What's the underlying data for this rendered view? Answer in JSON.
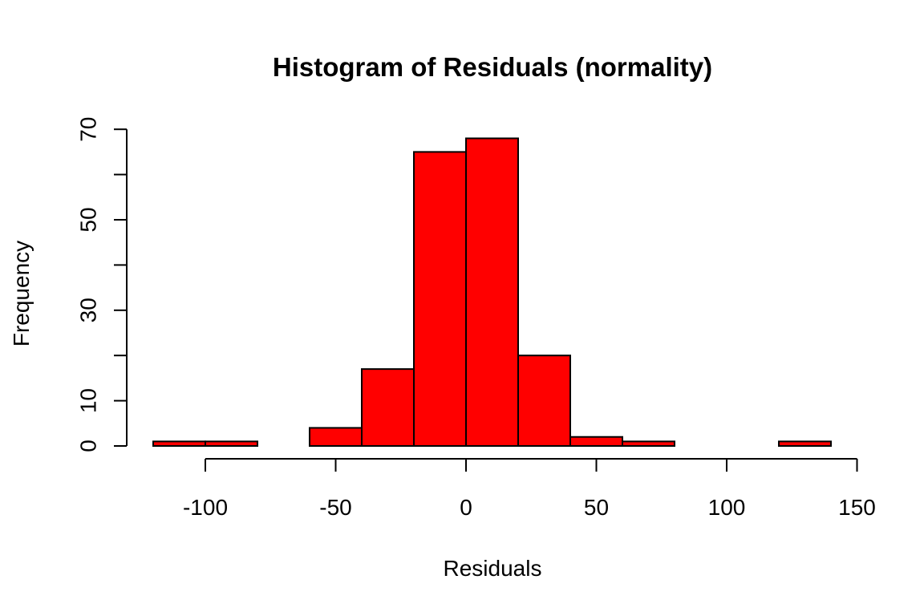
{
  "chart_data": {
    "type": "bar",
    "title": "Histogram of Residuals (normality)",
    "xlabel": "Residuals",
    "ylabel": "Frequency",
    "bar_color": "#FF0000",
    "bins": [
      {
        "start": -120,
        "end": -100,
        "count": 1
      },
      {
        "start": -100,
        "end": -80,
        "count": 1
      },
      {
        "start": -80,
        "end": -60,
        "count": 0
      },
      {
        "start": -60,
        "end": -40,
        "count": 4
      },
      {
        "start": -40,
        "end": -20,
        "count": 17
      },
      {
        "start": -20,
        "end": 0,
        "count": 65
      },
      {
        "start": 0,
        "end": 20,
        "count": 68
      },
      {
        "start": 20,
        "end": 40,
        "count": 20
      },
      {
        "start": 40,
        "end": 60,
        "count": 2
      },
      {
        "start": 60,
        "end": 80,
        "count": 1
      },
      {
        "start": 80,
        "end": 100,
        "count": 0
      },
      {
        "start": 100,
        "end": 120,
        "count": 0
      },
      {
        "start": 120,
        "end": 140,
        "count": 1
      }
    ],
    "xlim": [
      -120,
      140
    ],
    "ylim": [
      0,
      70
    ],
    "x_ticks": [
      -100,
      -50,
      0,
      50,
      100,
      150
    ],
    "x_tick_labels": [
      "-100",
      "-50",
      "0",
      "50",
      "100",
      "150"
    ],
    "y_ticks": [
      0,
      10,
      20,
      30,
      40,
      50,
      60,
      70
    ],
    "y_tick_labels": [
      "0",
      "10",
      "",
      "30",
      "",
      "50",
      "",
      "70"
    ],
    "grid": false,
    "legend": "none"
  }
}
